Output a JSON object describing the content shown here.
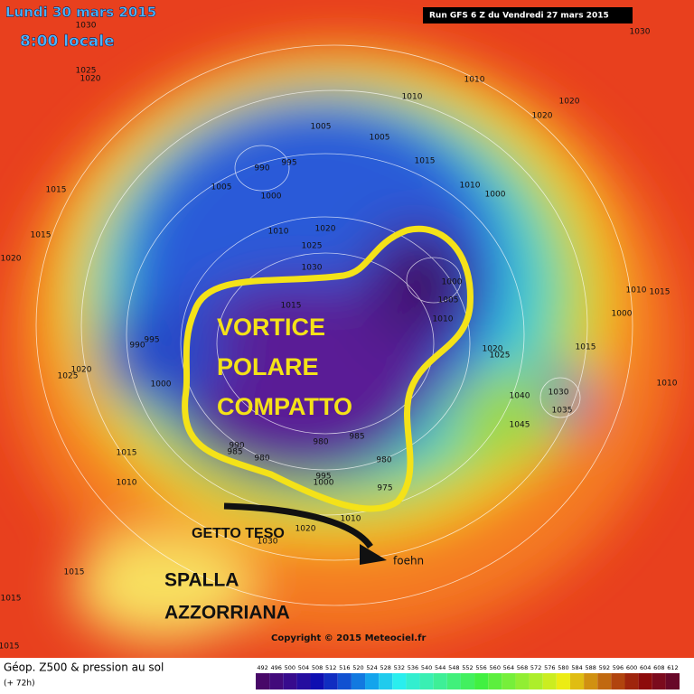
{
  "header": {
    "date": "Lundi 30 mars 2015",
    "time": "8:00 locale",
    "run": "Run GFS 6 Z du Vendredi 27 mars 2015"
  },
  "annotations": {
    "vortex": [
      "VORTICE",
      "POLARE",
      "COMPATTO"
    ],
    "jet": "GETTO TESO",
    "ridge": [
      "SPALLA",
      "AZZORRIANA"
    ],
    "foehn": "foehn"
  },
  "isobar_labels": [
    1030,
    1025,
    1020,
    1010,
    1010,
    1005,
    1005,
    990,
    995,
    1015,
    1005,
    1000,
    1015,
    1010,
    1000,
    1015,
    1010,
    1020,
    1025,
    1030,
    1020,
    1000,
    1005,
    1010,
    1015,
    990,
    995,
    1020,
    1025,
    1000,
    1020,
    1025,
    1040,
    1030,
    1035,
    1045,
    1015,
    1010,
    990,
    985,
    980,
    980,
    985,
    995,
    980,
    975,
    1000,
    1010,
    1020,
    1030,
    1015,
    1010,
    1015,
    1000,
    1010,
    1015,
    1020,
    1020,
    1030,
    1015,
    1015
  ],
  "copyright": "Copyright © 2015 Meteociel.fr",
  "legend": {
    "title": "Géop. Z500 & pression au sol",
    "lead": "(+ 72h)",
    "scale": [
      492,
      496,
      500,
      504,
      508,
      512,
      516,
      520,
      524,
      528,
      532,
      536,
      540,
      544,
      548,
      552,
      556,
      560,
      564,
      568,
      572,
      576,
      580,
      584,
      588,
      592,
      596,
      600,
      604,
      608,
      612
    ]
  }
}
